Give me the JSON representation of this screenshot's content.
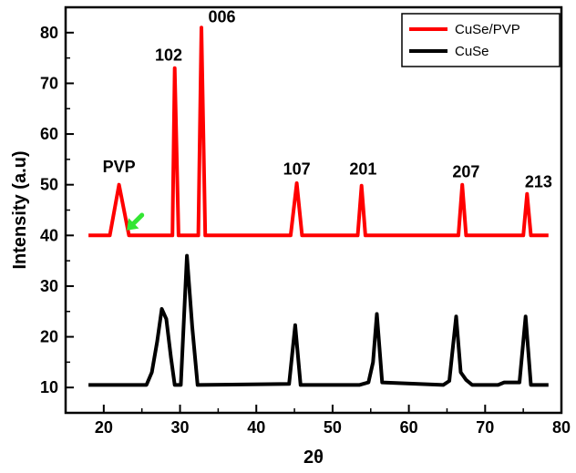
{
  "chart_data": {
    "type": "line",
    "xlabel": "2θ",
    "ylabel": "Intensity (a.u)",
    "xlim": [
      15,
      80
    ],
    "ylim": [
      5,
      85
    ],
    "x_ticks": [
      20,
      30,
      40,
      50,
      60,
      70,
      80
    ],
    "y_ticks": [
      10,
      20,
      30,
      40,
      50,
      60,
      70,
      80
    ],
    "grid": false,
    "legend_position": "top-right",
    "series": [
      {
        "name": "CuSe/PVP",
        "color": "#ff0000",
        "points": [
          [
            18,
            40
          ],
          [
            20.8,
            40
          ],
          [
            22,
            50
          ],
          [
            23.3,
            40
          ],
          [
            29,
            40
          ],
          [
            29.3,
            73
          ],
          [
            29.8,
            40
          ],
          [
            32.4,
            40
          ],
          [
            32.8,
            81
          ],
          [
            33.3,
            40
          ],
          [
            44.5,
            40
          ],
          [
            45.3,
            50.3
          ],
          [
            46,
            40
          ],
          [
            53.3,
            40
          ],
          [
            53.8,
            49.8
          ],
          [
            54.3,
            40
          ],
          [
            66.5,
            40
          ],
          [
            67,
            50
          ],
          [
            67.5,
            40
          ],
          [
            75,
            40
          ],
          [
            75.5,
            48.2
          ],
          [
            76,
            40
          ],
          [
            78.3,
            40
          ]
        ]
      },
      {
        "name": "CuSe",
        "color": "#000000",
        "points": [
          [
            18,
            10.5
          ],
          [
            25.6,
            10.5
          ],
          [
            26.3,
            13
          ],
          [
            27,
            19
          ],
          [
            27.6,
            25.5
          ],
          [
            28.2,
            23.5
          ],
          [
            28.8,
            16
          ],
          [
            29.3,
            10.5
          ],
          [
            30.1,
            10.5
          ],
          [
            30.9,
            36
          ],
          [
            31.6,
            22
          ],
          [
            32.3,
            10.5
          ],
          [
            44.3,
            10.7
          ],
          [
            45.1,
            22.3
          ],
          [
            45.8,
            10.5
          ],
          [
            53.5,
            10.5
          ],
          [
            54.7,
            11
          ],
          [
            55.3,
            15
          ],
          [
            55.8,
            24.5
          ],
          [
            56.5,
            11
          ],
          [
            64.5,
            10.5
          ],
          [
            65.3,
            11.3
          ],
          [
            66.2,
            24
          ],
          [
            66.8,
            13
          ],
          [
            67.5,
            11.5
          ],
          [
            68.3,
            10.5
          ],
          [
            71.7,
            10.5
          ],
          [
            72.5,
            11
          ],
          [
            74.5,
            11
          ],
          [
            75.3,
            24
          ],
          [
            76,
            10.5
          ],
          [
            78.3,
            10.5
          ]
        ]
      }
    ],
    "annotations": [
      {
        "text": "PVP",
        "x": 22,
        "y": 52.5
      },
      {
        "text": "102",
        "x": 28.5,
        "y": 74.5
      },
      {
        "text": "006",
        "x": 35.5,
        "y": 82
      },
      {
        "text": "107",
        "x": 45.3,
        "y": 52
      },
      {
        "text": "201",
        "x": 54,
        "y": 52
      },
      {
        "text": "207",
        "x": 67.5,
        "y": 51.5
      },
      {
        "text": "213",
        "x": 77,
        "y": 49.5
      }
    ],
    "arrow": {
      "from": [
        25,
        44
      ],
      "to": [
        23,
        41
      ],
      "color": "#33e633"
    }
  }
}
